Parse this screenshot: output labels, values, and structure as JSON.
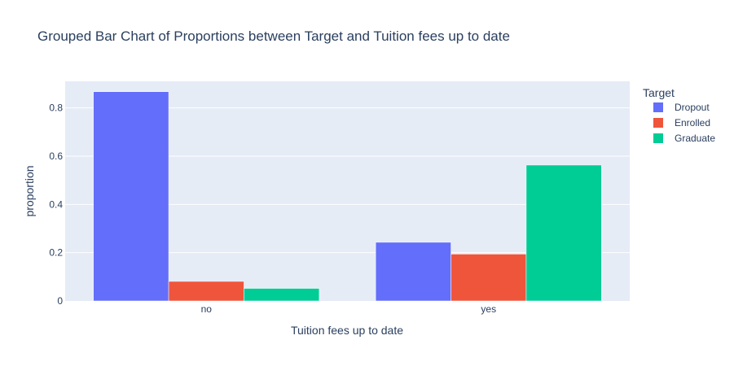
{
  "chart_data": {
    "type": "bar",
    "barmode": "group",
    "title": "Grouped Bar Chart of Proportions between Target and Tuition fees up to date",
    "xlabel": "Tuition fees up to date",
    "ylabel": "proportion",
    "categories": [
      "no",
      "yes"
    ],
    "ylim": [
      0,
      0.91
    ],
    "yticks": [
      0,
      0.2,
      0.4,
      0.6,
      0.8
    ],
    "ytick_labels": [
      "0",
      "0.2",
      "0.4",
      "0.6",
      "0.8"
    ],
    "grid": true,
    "legend": {
      "title": "Target",
      "position": "top-right"
    },
    "series": [
      {
        "name": "Dropout",
        "color": "#636efa",
        "values": [
          0.867,
          0.243
        ]
      },
      {
        "name": "Enrolled",
        "color": "#ef553b",
        "values": [
          0.081,
          0.194
        ]
      },
      {
        "name": "Graduate",
        "color": "#00cc96",
        "values": [
          0.052,
          0.563
        ]
      }
    ]
  }
}
